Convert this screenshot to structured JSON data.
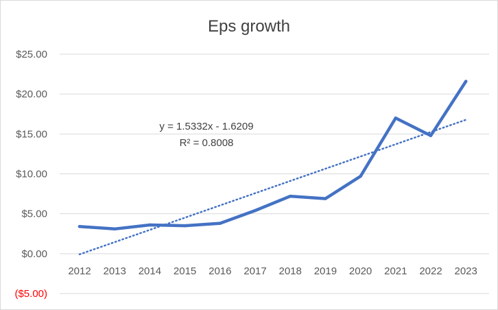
{
  "chart_data": {
    "type": "line",
    "title": "Eps growth",
    "xlabel": "",
    "ylabel": "",
    "categories": [
      "2012",
      "2013",
      "2014",
      "2015",
      "2016",
      "2017",
      "2018",
      "2019",
      "2020",
      "2021",
      "2022",
      "2023"
    ],
    "series": [
      {
        "values": [
          3.4,
          3.1,
          3.6,
          3.5,
          3.8,
          5.4,
          7.2,
          6.9,
          9.7,
          17.0,
          14.8,
          21.6
        ]
      }
    ],
    "trendline": {
      "type": "linear",
      "slope": 1.5332,
      "intercept": -1.6209,
      "equation_label": "y = 1.5332x - 1.6209",
      "r2_label": "R² = 0.8008"
    },
    "ylim": [
      -5,
      25
    ],
    "yticks": [
      25,
      20,
      15,
      10,
      5,
      0,
      -5
    ],
    "ytick_labels": [
      "$25.00",
      "$20.00",
      "$15.00",
      "$10.00",
      "$5.00",
      "$0.00",
      "($5.00)"
    ],
    "grid": true,
    "legend": "none",
    "colors": {
      "line": "#4472c4",
      "trend": "#4472c4",
      "negative_label": "#ff0000"
    }
  }
}
